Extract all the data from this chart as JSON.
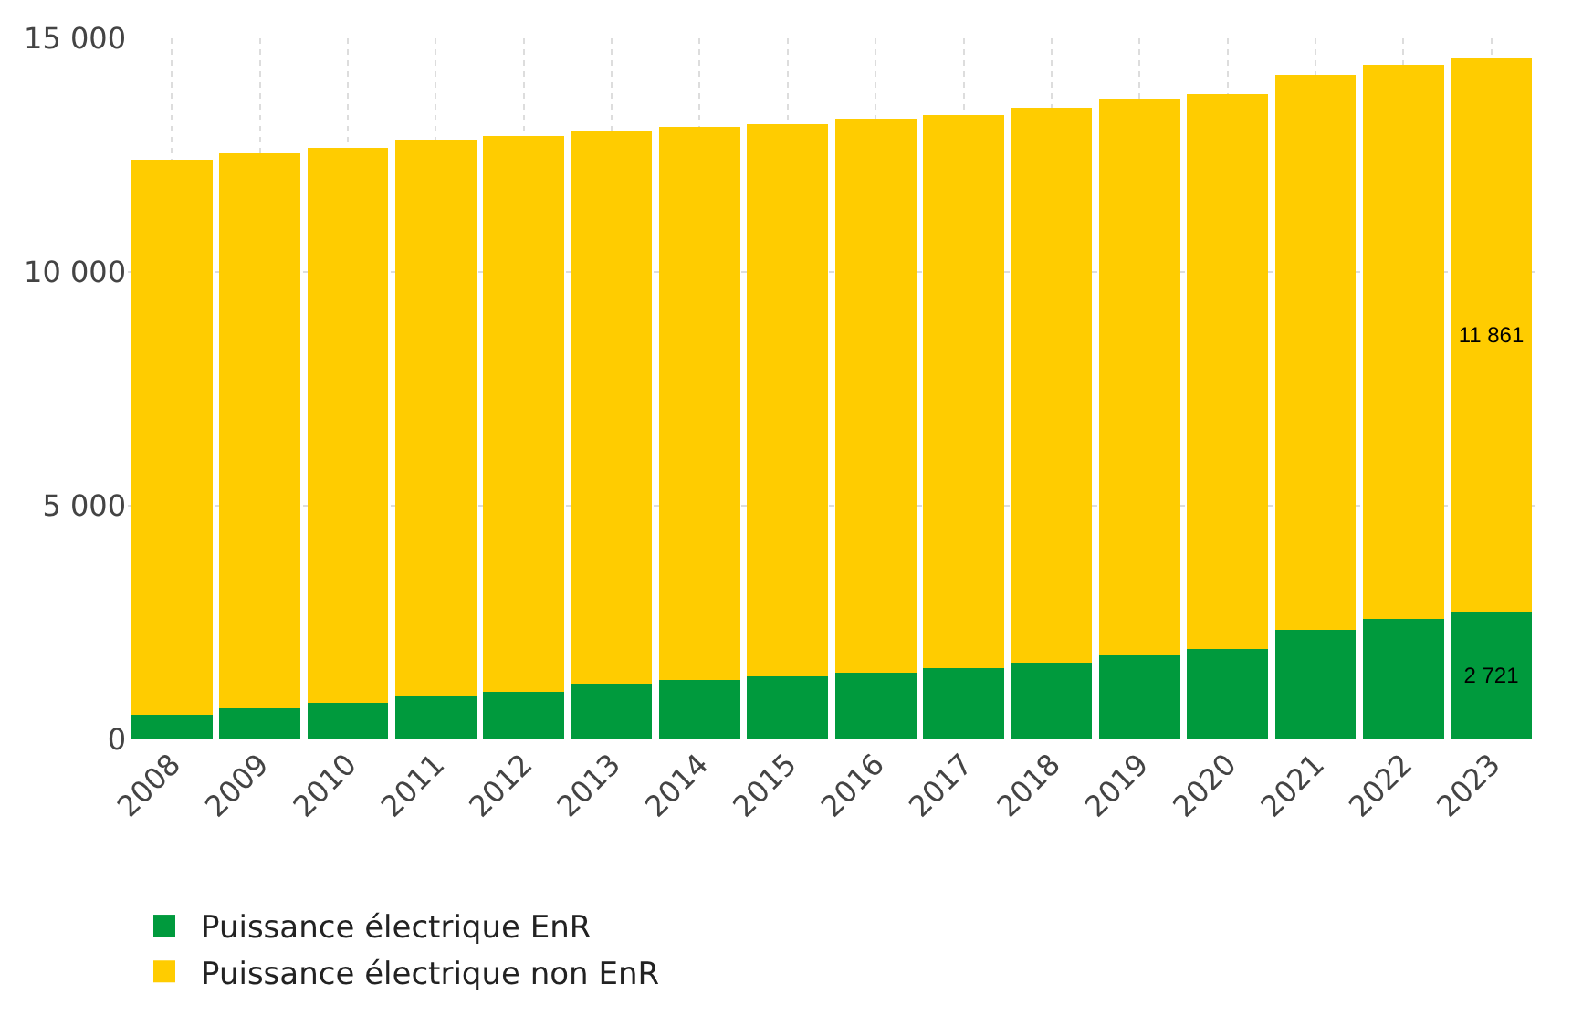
{
  "chart_data": {
    "type": "bar",
    "stacked": true,
    "categories": [
      "2008",
      "2009",
      "2010",
      "2011",
      "2012",
      "2013",
      "2014",
      "2015",
      "2016",
      "2017",
      "2018",
      "2019",
      "2020",
      "2021",
      "2022",
      "2023"
    ],
    "series": [
      {
        "name": "Puissance électrique EnR",
        "color": "#009a3d",
        "values": [
          530,
          660,
          780,
          940,
          1020,
          1190,
          1270,
          1350,
          1430,
          1520,
          1640,
          1800,
          1930,
          2340,
          2580,
          2721
        ],
        "value_labels": [
          null,
          null,
          null,
          null,
          null,
          null,
          null,
          null,
          null,
          null,
          null,
          null,
          null,
          null,
          null,
          "2 721"
        ]
      },
      {
        "name": "Puissance électrique non EnR",
        "color": "#ffcc00",
        "values": [
          11880,
          11880,
          11880,
          11890,
          11890,
          11840,
          11840,
          11810,
          11850,
          11840,
          11880,
          11890,
          11880,
          11880,
          11850,
          11861
        ],
        "value_labels": [
          null,
          null,
          null,
          null,
          null,
          null,
          null,
          null,
          null,
          null,
          null,
          null,
          null,
          null,
          null,
          "11 861"
        ]
      }
    ],
    "ylim": [
      0,
      15000
    ],
    "yticks": [
      0,
      {
        "value": 5000,
        "label": "5 000"
      },
      {
        "value": 10000,
        "label": "10 000"
      },
      {
        "value": 15000,
        "label": "15 000"
      }
    ],
    "grid": true,
    "legend": "bottom left"
  }
}
